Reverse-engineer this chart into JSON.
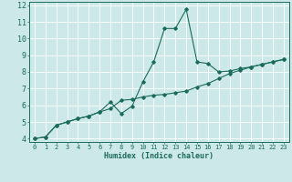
{
  "xlabel": "Humidex (Indice chaleur)",
  "ylabel": "",
  "bg_color": "#cce8e8",
  "line_color": "#1a6b5a",
  "grid_color": "#ffffff",
  "xlim": [
    -0.5,
    23.5
  ],
  "ylim": [
    3.8,
    12.2
  ],
  "xticks": [
    0,
    1,
    2,
    3,
    4,
    5,
    6,
    7,
    8,
    9,
    10,
    11,
    12,
    13,
    14,
    15,
    16,
    17,
    18,
    19,
    20,
    21,
    22,
    23
  ],
  "yticks": [
    4,
    5,
    6,
    7,
    8,
    9,
    10,
    11,
    12
  ],
  "line1_x": [
    0,
    1,
    2,
    3,
    4,
    5,
    6,
    7,
    8,
    9,
    10,
    11,
    12,
    13,
    14,
    15,
    16,
    17,
    18,
    19,
    20,
    21,
    22,
    23
  ],
  "line1_y": [
    4.0,
    4.1,
    4.8,
    5.0,
    5.2,
    5.35,
    5.6,
    5.8,
    6.3,
    6.35,
    6.5,
    6.6,
    6.65,
    6.75,
    6.85,
    7.1,
    7.3,
    7.6,
    7.9,
    8.1,
    8.3,
    8.45,
    8.6,
    8.75
  ],
  "line2_x": [
    0,
    1,
    2,
    3,
    4,
    5,
    6,
    7,
    8,
    9,
    10,
    11,
    12,
    13,
    14,
    15,
    16,
    17,
    18,
    19,
    20,
    21,
    22,
    23
  ],
  "line2_y": [
    4.0,
    4.1,
    4.8,
    5.0,
    5.2,
    5.35,
    5.6,
    6.2,
    5.5,
    5.95,
    7.4,
    8.6,
    10.6,
    10.6,
    11.75,
    8.6,
    8.5,
    8.0,
    8.05,
    8.2,
    8.3,
    8.45,
    8.6,
    8.75
  ],
  "xlabel_fontsize": 6,
  "tick_fontsize_x": 5,
  "tick_fontsize_y": 6
}
